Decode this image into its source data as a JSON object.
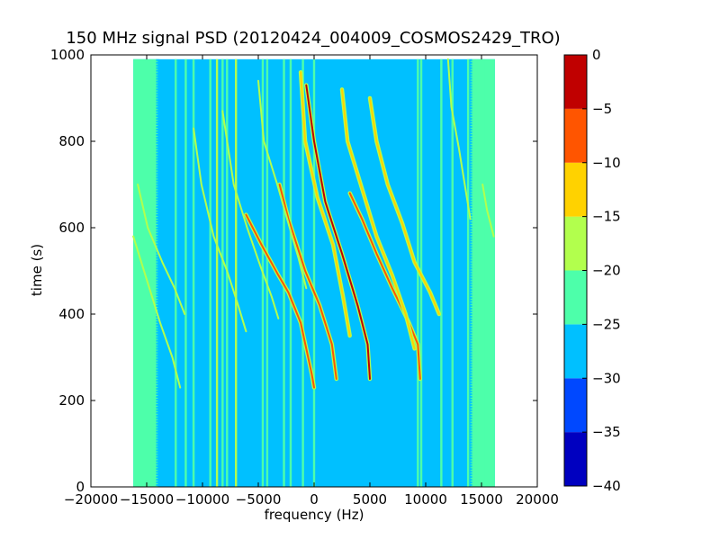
{
  "chart_data": {
    "type": "heatmap",
    "title": "150 MHz signal PSD (20120424_004009_COSMOS2429_TRO)",
    "xlabel": "frequency (Hz)",
    "ylabel": "time (s)",
    "xlim": [
      -20000,
      20000
    ],
    "ylim": [
      0,
      1000
    ],
    "x_ticks": [
      -20000,
      -15000,
      -10000,
      -5000,
      0,
      5000,
      10000,
      15000,
      20000
    ],
    "x_tick_labels": [
      "−20000",
      "−15000",
      "−10000",
      "−5000",
      "0",
      "5000",
      "10000",
      "15000",
      "20000"
    ],
    "y_ticks": [
      0,
      200,
      400,
      600,
      800,
      1000
    ],
    "y_tick_labels": [
      "0",
      "200",
      "400",
      "600",
      "800",
      "1000"
    ],
    "data_extent": {
      "x": [
        -16200,
        16200
      ],
      "y": [
        0,
        990
      ]
    },
    "background_level": -27.5,
    "edge_level": -22.5,
    "edge_band_hz": [
      [
        -16200,
        -14000
      ],
      [
        14000,
        16200
      ]
    ],
    "vertical_lines": [
      {
        "x": -12400,
        "level": -22.5
      },
      {
        "x": -11500,
        "level": -22.5
      },
      {
        "x": -10800,
        "level": -22.5
      },
      {
        "x": -9300,
        "level": -22.5
      },
      {
        "x": -8700,
        "level": -17.5
      },
      {
        "x": -8200,
        "level": -22.5
      },
      {
        "x": -7800,
        "level": -22.5
      },
      {
        "x": -7000,
        "level": -17.5
      },
      {
        "x": -4600,
        "level": -22.5
      },
      {
        "x": -4200,
        "level": -22.5
      },
      {
        "x": -2700,
        "level": -22.5
      },
      {
        "x": -2100,
        "level": -22.5
      },
      {
        "x": -1000,
        "level": -22.5
      },
      {
        "x": 0,
        "level": -22.5
      },
      {
        "x": 9300,
        "level": -22.5
      },
      {
        "x": 9600,
        "level": -22.5
      },
      {
        "x": 11400,
        "level": -22.5
      },
      {
        "x": 12400,
        "level": -22.5
      },
      {
        "x": 13800,
        "level": -22.5
      },
      {
        "x": 15200,
        "level": -22.5
      }
    ],
    "doppler_tracks": [
      {
        "name": "",
        "level": -2.5,
        "points": [
          [
            -700,
            930
          ],
          [
            0,
            800
          ],
          [
            1000,
            660
          ],
          [
            2500,
            540
          ],
          [
            3900,
            420
          ],
          [
            4800,
            330
          ],
          [
            5000,
            250
          ]
        ]
      },
      {
        "name": "",
        "level": -7.5,
        "points": [
          [
            -6100,
            630
          ],
          [
            -4700,
            560
          ],
          [
            -3200,
            490
          ],
          [
            -2300,
            450
          ],
          [
            -1200,
            380
          ],
          [
            -200,
            260
          ],
          [
            0,
            230
          ]
        ]
      },
      {
        "name": "",
        "level": -7.5,
        "points": [
          [
            -3100,
            700
          ],
          [
            -2300,
            620
          ],
          [
            -800,
            500
          ],
          [
            500,
            420
          ],
          [
            1600,
            330
          ],
          [
            2000,
            250
          ]
        ]
      },
      {
        "name": "",
        "level": -7.5,
        "points": [
          [
            3200,
            680
          ],
          [
            4300,
            620
          ],
          [
            5600,
            540
          ],
          [
            7000,
            460
          ],
          [
            8500,
            380
          ],
          [
            9300,
            330
          ],
          [
            9500,
            250
          ]
        ]
      },
      {
        "name": "",
        "level": -12.5,
        "points": [
          [
            5000,
            900
          ],
          [
            5600,
            800
          ],
          [
            6600,
            700
          ],
          [
            7900,
            610
          ],
          [
            9000,
            520
          ],
          [
            10400,
            450
          ],
          [
            11200,
            400
          ]
        ]
      },
      {
        "name": "",
        "level": -12.5,
        "points": [
          [
            2500,
            920
          ],
          [
            3000,
            800
          ],
          [
            4300,
            690
          ],
          [
            5600,
            580
          ],
          [
            7000,
            490
          ],
          [
            8200,
            400
          ],
          [
            9000,
            320
          ]
        ]
      },
      {
        "name": "",
        "level": -12.5,
        "points": [
          [
            -1200,
            960
          ],
          [
            -800,
            800
          ],
          [
            300,
            670
          ],
          [
            1700,
            560
          ],
          [
            2600,
            440
          ],
          [
            3200,
            350
          ]
        ]
      },
      {
        "name": "",
        "level": -17.5,
        "points": [
          [
            -5000,
            940
          ],
          [
            -4500,
            800
          ],
          [
            -3300,
            700
          ],
          [
            -2300,
            610
          ],
          [
            -1400,
            530
          ],
          [
            -700,
            460
          ]
        ]
      },
      {
        "name": "",
        "level": -17.5,
        "points": [
          [
            -8200,
            870
          ],
          [
            -7200,
            700
          ],
          [
            -6000,
            600
          ],
          [
            -4800,
            510
          ],
          [
            -3800,
            440
          ],
          [
            -3200,
            390
          ]
        ]
      },
      {
        "name": "",
        "level": -17.5,
        "points": [
          [
            -10800,
            830
          ],
          [
            -10100,
            700
          ],
          [
            -9000,
            580
          ],
          [
            -7800,
            500
          ],
          [
            -6800,
            420
          ],
          [
            -6100,
            360
          ]
        ]
      },
      {
        "name": "",
        "level": -17.5,
        "points": [
          [
            -15800,
            700
          ],
          [
            -14900,
            600
          ],
          [
            -13600,
            520
          ],
          [
            -12500,
            460
          ],
          [
            -11600,
            400
          ]
        ]
      },
      {
        "name": "",
        "level": -17.5,
        "points": [
          [
            -16200,
            580
          ],
          [
            -15000,
            480
          ],
          [
            -13800,
            380
          ],
          [
            -12700,
            300
          ],
          [
            -12000,
            230
          ]
        ]
      },
      {
        "name": "",
        "level": -17.5,
        "points": [
          [
            12000,
            990
          ],
          [
            12300,
            880
          ],
          [
            13000,
            780
          ],
          [
            13500,
            700
          ],
          [
            14000,
            620
          ]
        ]
      },
      {
        "name": "",
        "level": -17.5,
        "points": [
          [
            15100,
            700
          ],
          [
            15500,
            640
          ],
          [
            16100,
            580
          ]
        ]
      }
    ],
    "colorbar": {
      "levels": [
        -40,
        -35,
        -30,
        -25,
        -20,
        -15,
        -10,
        -5,
        0
      ],
      "tick_labels": [
        "−40",
        "−35",
        "−30",
        "−25",
        "−20",
        "−15",
        "−10",
        "−5",
        "0"
      ],
      "colors": [
        "#0000c0",
        "#0048ff",
        "#00c0ff",
        "#4dffaa",
        "#b2ff4d",
        "#ffd200",
        "#ff5500",
        "#c00000"
      ]
    }
  }
}
